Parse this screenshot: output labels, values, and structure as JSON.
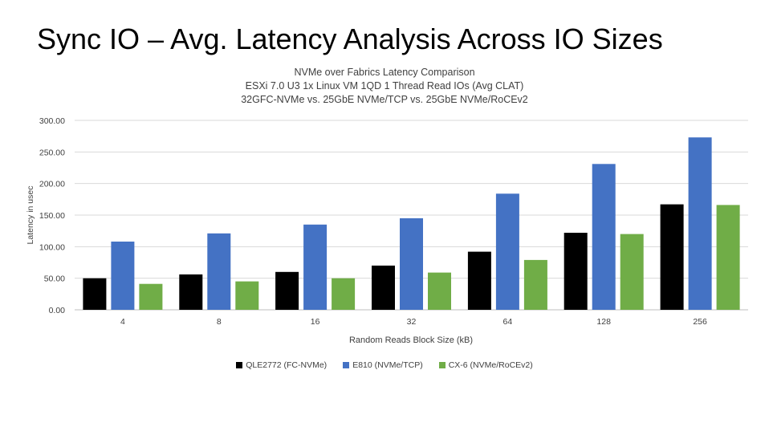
{
  "slide": {
    "title": "Sync IO – Avg. Latency Analysis Across IO Sizes"
  },
  "chart_data": {
    "type": "bar",
    "title": "NVMe over Fabrics Latency Comparison",
    "subtitle_lines": [
      "ESXi 7.0 U3 1x Linux VM 1QD 1 Thread Read IOs (Avg CLAT)",
      "32GFC-NVMe vs. 25GbE NVMe/TCP vs. 25GbE NVMe/RoCEv2"
    ],
    "xlabel": "Random Reads Block Size (kB)",
    "ylabel": "Latency in usec",
    "ylim": [
      0,
      300
    ],
    "yticks": [
      "0.00",
      "50.00",
      "100.00",
      "150.00",
      "200.00",
      "250.00",
      "300.00"
    ],
    "grid": true,
    "legend_position": "bottom",
    "categories": [
      "4",
      "8",
      "16",
      "32",
      "64",
      "128",
      "256"
    ],
    "series": [
      {
        "name": "QLE2772 (FC-NVMe)",
        "color": "#000000",
        "values": [
          50,
          56,
          60,
          70,
          92,
          122,
          167
        ]
      },
      {
        "name": "E810 (NVMe/TCP)",
        "color": "#4472C4",
        "values": [
          108,
          121,
          135,
          145,
          184,
          231,
          273
        ]
      },
      {
        "name": "CX-6 (NVMe/RoCEv2)",
        "color": "#70AD47",
        "values": [
          41,
          45,
          50,
          59,
          79,
          120,
          166
        ]
      }
    ]
  }
}
